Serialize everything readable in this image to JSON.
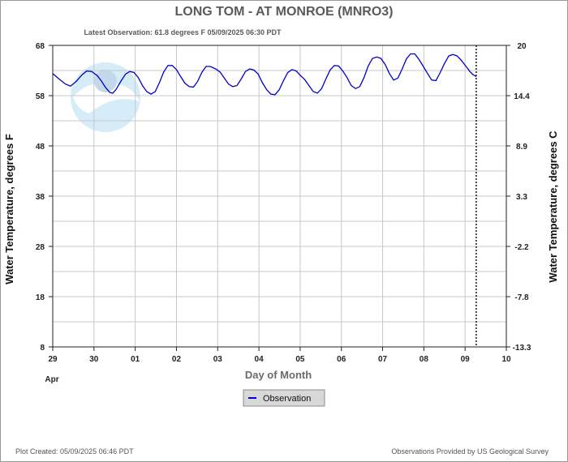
{
  "title": "LONG TOM - AT MONROE  (MNRO3)",
  "subtitle": "Latest Observation: 61.8 degrees F 05/09/2025 06:30 PDT",
  "footer": {
    "created": "Plot Created: 05/09/2025 06:46 PDT",
    "credit": "Observations Provided by US Geological Survey"
  },
  "legend": {
    "label": "Observation"
  },
  "colors": {
    "series": "#0000cc",
    "grid": "#c8c8c8",
    "logo": "#cfe6f5"
  },
  "chart_data": {
    "type": "line",
    "xlabel": "Day of Month",
    "ylabel_left": "Water Temperature, degrees F",
    "ylabel_right": "Water Temperature, degrees C",
    "x_tick_labels": [
      "29",
      "30",
      "01",
      "02",
      "03",
      "04",
      "05",
      "06",
      "07",
      "08",
      "09",
      "10"
    ],
    "x_sub_label": "Apr",
    "x_range_days": [
      0,
      11
    ],
    "y_left_ticks": [
      "68",
      "58",
      "48",
      "38",
      "28",
      "18",
      "8"
    ],
    "y_right_ticks": [
      "20",
      "14.4",
      "8.9",
      "3.3",
      "-2.2",
      "-7.8",
      "-13.3"
    ],
    "ylim": [
      8,
      68
    ],
    "latest_observation_day": 10.27,
    "series": [
      {
        "name": "Observation",
        "points": [
          [
            0.0,
            62.4
          ],
          [
            0.15,
            61.3
          ],
          [
            0.3,
            60.3
          ],
          [
            0.42,
            59.9
          ],
          [
            0.55,
            60.8
          ],
          [
            0.7,
            62.2
          ],
          [
            0.8,
            62.9
          ],
          [
            0.92,
            62.8
          ],
          [
            1.05,
            62.0
          ],
          [
            1.15,
            60.9
          ],
          [
            1.25,
            59.6
          ],
          [
            1.35,
            58.6
          ],
          [
            1.42,
            58.5
          ],
          [
            1.5,
            59.3
          ],
          [
            1.62,
            61.0
          ],
          [
            1.72,
            62.3
          ],
          [
            1.82,
            62.8
          ],
          [
            1.92,
            62.6
          ],
          [
            2.02,
            61.6
          ],
          [
            2.12,
            60.0
          ],
          [
            2.22,
            58.8
          ],
          [
            2.32,
            58.3
          ],
          [
            2.42,
            58.8
          ],
          [
            2.52,
            60.6
          ],
          [
            2.62,
            62.7
          ],
          [
            2.72,
            64.0
          ],
          [
            2.82,
            64.0
          ],
          [
            2.92,
            63.2
          ],
          [
            3.02,
            61.8
          ],
          [
            3.12,
            60.5
          ],
          [
            3.22,
            59.8
          ],
          [
            3.32,
            59.7
          ],
          [
            3.42,
            60.8
          ],
          [
            3.52,
            62.6
          ],
          [
            3.62,
            63.8
          ],
          [
            3.72,
            63.8
          ],
          [
            3.85,
            63.3
          ],
          [
            3.95,
            62.7
          ],
          [
            4.05,
            61.5
          ],
          [
            4.15,
            60.3
          ],
          [
            4.25,
            59.8
          ],
          [
            4.35,
            60.0
          ],
          [
            4.45,
            61.3
          ],
          [
            4.55,
            62.8
          ],
          [
            4.65,
            63.3
          ],
          [
            4.75,
            63.1
          ],
          [
            4.85,
            62.3
          ],
          [
            4.95,
            60.6
          ],
          [
            5.05,
            59.2
          ],
          [
            5.15,
            58.3
          ],
          [
            5.25,
            58.2
          ],
          [
            5.35,
            59.2
          ],
          [
            5.45,
            61.0
          ],
          [
            5.55,
            62.6
          ],
          [
            5.65,
            63.2
          ],
          [
            5.75,
            62.9
          ],
          [
            5.85,
            62.0
          ],
          [
            5.95,
            61.2
          ],
          [
            6.05,
            60.0
          ],
          [
            6.15,
            58.8
          ],
          [
            6.25,
            58.5
          ],
          [
            6.35,
            59.4
          ],
          [
            6.45,
            61.3
          ],
          [
            6.55,
            63.1
          ],
          [
            6.65,
            64.0
          ],
          [
            6.75,
            63.9
          ],
          [
            6.85,
            62.9
          ],
          [
            6.95,
            61.6
          ],
          [
            7.05,
            60.0
          ],
          [
            7.15,
            59.4
          ],
          [
            7.25,
            59.8
          ],
          [
            7.35,
            61.6
          ],
          [
            7.45,
            63.9
          ],
          [
            7.55,
            65.4
          ],
          [
            7.65,
            65.7
          ],
          [
            7.75,
            65.4
          ],
          [
            7.85,
            64.2
          ],
          [
            7.95,
            62.4
          ],
          [
            8.05,
            61.1
          ],
          [
            8.15,
            61.5
          ],
          [
            8.25,
            63.3
          ],
          [
            8.35,
            65.3
          ],
          [
            8.45,
            66.3
          ],
          [
            8.55,
            66.3
          ],
          [
            8.65,
            65.2
          ],
          [
            8.75,
            63.8
          ],
          [
            8.85,
            62.4
          ],
          [
            8.95,
            61.1
          ],
          [
            9.05,
            61.0
          ],
          [
            9.15,
            62.6
          ],
          [
            9.25,
            64.4
          ],
          [
            9.35,
            65.9
          ],
          [
            9.45,
            66.2
          ],
          [
            9.55,
            65.9
          ],
          [
            9.65,
            65.0
          ],
          [
            9.75,
            63.9
          ],
          [
            9.85,
            62.8
          ],
          [
            9.92,
            62.2
          ],
          [
            10.0,
            61.8
          ]
        ]
      }
    ]
  }
}
